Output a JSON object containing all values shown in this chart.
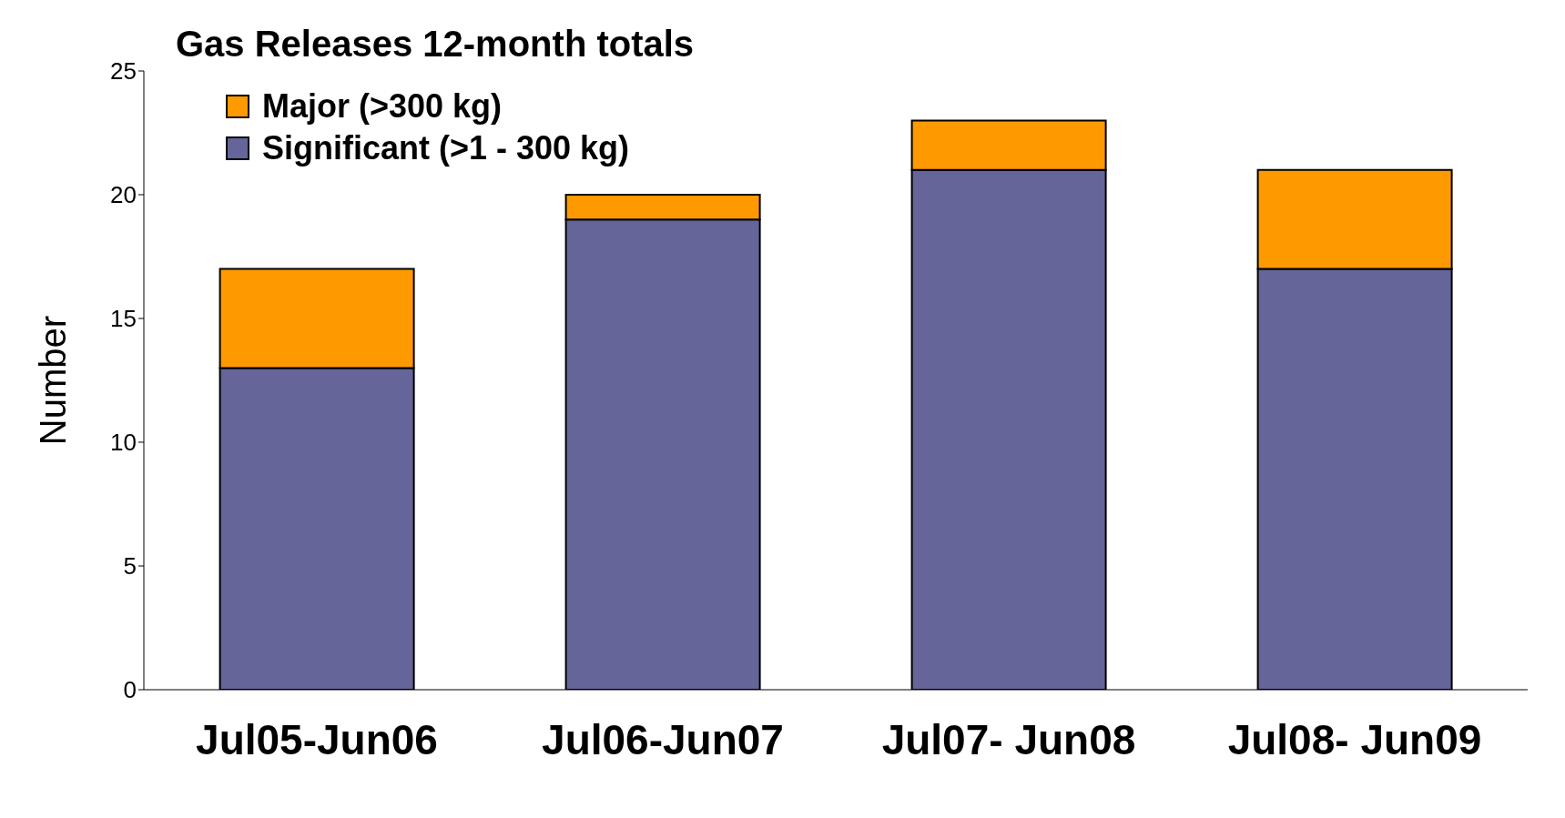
{
  "chart_data": {
    "type": "bar",
    "title": "Gas Releases 12-month totals",
    "ylabel": "Number",
    "categories": [
      "Jul05-Jun06",
      "Jul06-Jun07",
      "Jul07- Jun08",
      "Jul08- Jun09"
    ],
    "stacked": true,
    "series": [
      {
        "name": "Significant (>1 - 300 kg)",
        "color": "#65659a",
        "values": [
          13,
          19,
          21,
          17
        ]
      },
      {
        "name": "Major (>300 kg)",
        "color": "#ff9900",
        "values": [
          4,
          1,
          2,
          4
        ]
      }
    ],
    "ylim": [
      0,
      25
    ],
    "yticks": [
      0,
      5,
      10,
      15,
      20,
      25
    ],
    "grid": false,
    "legend": "top left"
  }
}
